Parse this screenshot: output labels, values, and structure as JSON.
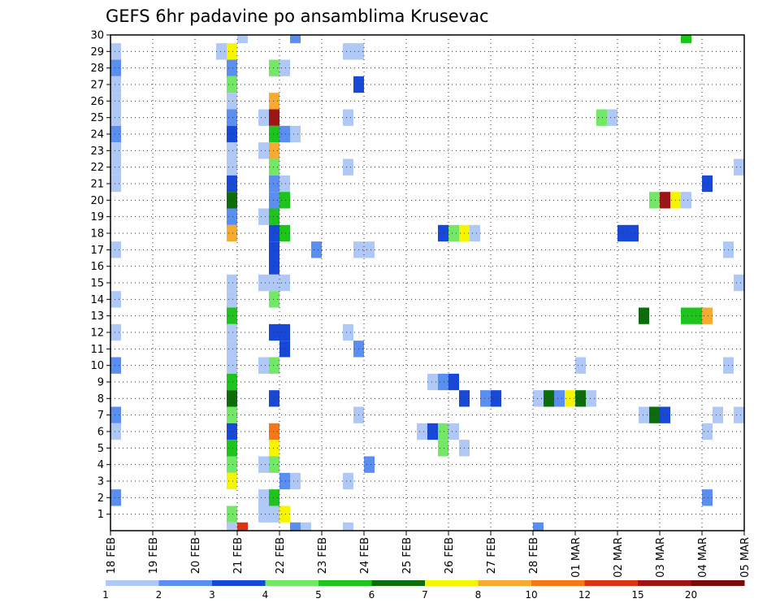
{
  "chart_data": {
    "type": "heatmap",
    "title": "GEFS 6hr padavine po ansamblima Krusevac",
    "y_ticks": [
      "1",
      "2",
      "3",
      "4",
      "5",
      "6",
      "7",
      "8",
      "9",
      "10",
      "11",
      "12",
      "13",
      "14",
      "15",
      "16",
      "17",
      "18",
      "19",
      "20",
      "21",
      "22",
      "23",
      "24",
      "25",
      "26",
      "27",
      "28",
      "29",
      "30"
    ],
    "x_ticks": [
      "18 FEB",
      "19 FEB",
      "20 FEB",
      "21 FEB",
      "22 FEB",
      "23 FEB",
      "24 FEB",
      "25 FEB",
      "26 FEB",
      "27 FEB",
      "28 FEB",
      "01 MAR",
      "02 MAR",
      "03 MAR",
      "04 MAR",
      "05 MAR"
    ],
    "xlim": [
      0,
      15
    ],
    "ylim": [
      0,
      30
    ],
    "grid": true,
    "step_days": 0.25,
    "colorbar": {
      "labels": [
        "1",
        "2",
        "3",
        "4",
        "5",
        "6",
        "7",
        "8",
        "10",
        "12",
        "15",
        "20"
      ],
      "colors": [
        "#b0c8f5",
        "#5a8ef0",
        "#1848d8",
        "#73e867",
        "#1cc41c",
        "#0b6e0b",
        "#f5f500",
        "#f5aa32",
        "#f57814",
        "#dc3214",
        "#a01414",
        "#780a0a"
      ]
    },
    "cells": [
      [
        0,
        0.0,
        2,
        2
      ],
      [
        0,
        0.0,
        10,
        2
      ],
      [
        0,
        0.0,
        7,
        2
      ],
      [
        0,
        0.0,
        28,
        2
      ],
      [
        0,
        0.0,
        24,
        2
      ],
      [
        0,
        0.0,
        29,
        1
      ],
      [
        0,
        0.0,
        27,
        1
      ],
      [
        0,
        0.0,
        26,
        1
      ],
      [
        0,
        0.0,
        25,
        1
      ],
      [
        0,
        0.0,
        23,
        1
      ],
      [
        0,
        0.0,
        22,
        1
      ],
      [
        0,
        0.0,
        21,
        1
      ],
      [
        0,
        0.0,
        17,
        1
      ],
      [
        0,
        0.0,
        14,
        1
      ],
      [
        0,
        0.0,
        12,
        1
      ],
      [
        0,
        0.0,
        6,
        1
      ],
      [
        2,
        0.5,
        29,
        1
      ],
      [
        2,
        0.75,
        29,
        7
      ],
      [
        2,
        0.75,
        28,
        2
      ],
      [
        2,
        0.75,
        27,
        4
      ],
      [
        2,
        0.75,
        26,
        1
      ],
      [
        2,
        0.75,
        25,
        2
      ],
      [
        2,
        0.75,
        24,
        3
      ],
      [
        2,
        0.75,
        23,
        1
      ],
      [
        2,
        0.75,
        22,
        1
      ],
      [
        2,
        0.75,
        21,
        3
      ],
      [
        2,
        0.75,
        20,
        6
      ],
      [
        2,
        0.75,
        19,
        2
      ],
      [
        2,
        0.75,
        18,
        8
      ],
      [
        2,
        0.75,
        15,
        1
      ],
      [
        2,
        0.75,
        14,
        1
      ],
      [
        2,
        0.75,
        13,
        5
      ],
      [
        2,
        0.75,
        12,
        1
      ],
      [
        2,
        0.75,
        11,
        1
      ],
      [
        2,
        0.75,
        10,
        1
      ],
      [
        2,
        0.75,
        9,
        5
      ],
      [
        2,
        0.75,
        8,
        6
      ],
      [
        2,
        0.75,
        7,
        4
      ],
      [
        2,
        0.75,
        6,
        3
      ],
      [
        2,
        0.75,
        5,
        5
      ],
      [
        2,
        0.75,
        4,
        4
      ],
      [
        2,
        0.75,
        3,
        7
      ],
      [
        2,
        0.75,
        1,
        4
      ],
      [
        2,
        0.75,
        0,
        1
      ],
      [
        3,
        0.0,
        30,
        1
      ],
      [
        3,
        0.0,
        0,
        10
      ],
      [
        3,
        0.5,
        25,
        1
      ],
      [
        3,
        0.5,
        23,
        1
      ],
      [
        3,
        0.5,
        19,
        1
      ],
      [
        3,
        0.5,
        15,
        1
      ],
      [
        3,
        0.5,
        10,
        1
      ],
      [
        3,
        0.5,
        4,
        1
      ],
      [
        3,
        0.5,
        2,
        1
      ],
      [
        3,
        0.5,
        1,
        1
      ],
      [
        3,
        0.75,
        28,
        4
      ],
      [
        3,
        0.75,
        26,
        8
      ],
      [
        3,
        0.75,
        25,
        11
      ],
      [
        3,
        0.75,
        24,
        5
      ],
      [
        3,
        0.75,
        23,
        8
      ],
      [
        3,
        0.75,
        22,
        4
      ],
      [
        3,
        0.75,
        21,
        2
      ],
      [
        3,
        0.75,
        20,
        2
      ],
      [
        3,
        0.75,
        19,
        5
      ],
      [
        3,
        0.75,
        18,
        3
      ],
      [
        3,
        0.75,
        17,
        3
      ],
      [
        3,
        0.75,
        16,
        3
      ],
      [
        3,
        0.75,
        15,
        1
      ],
      [
        3,
        0.75,
        14,
        4
      ],
      [
        3,
        0.75,
        12,
        3
      ],
      [
        3,
        0.75,
        10,
        4
      ],
      [
        3,
        0.75,
        8,
        3
      ],
      [
        3,
        0.75,
        6,
        9
      ],
      [
        3,
        0.75,
        5,
        7
      ],
      [
        3,
        0.75,
        4,
        4
      ],
      [
        3,
        0.75,
        2,
        5
      ],
      [
        3,
        0.75,
        1,
        1
      ],
      [
        4,
        0.0,
        28,
        1
      ],
      [
        4,
        0.0,
        24,
        2
      ],
      [
        4,
        0.0,
        21,
        1
      ],
      [
        4,
        0.0,
        20,
        5
      ],
      [
        4,
        0.0,
        18,
        5
      ],
      [
        4,
        0.0,
        15,
        1
      ],
      [
        4,
        0.0,
        12,
        3
      ],
      [
        4,
        0.0,
        11,
        3
      ],
      [
        4,
        0.0,
        3,
        2
      ],
      [
        4,
        0.0,
        1,
        7
      ],
      [
        4,
        0.25,
        30,
        2
      ],
      [
        4,
        0.25,
        24,
        1
      ],
      [
        4,
        0.25,
        3,
        1
      ],
      [
        4,
        0.25,
        0,
        2
      ],
      [
        4,
        0.5,
        0,
        1
      ],
      [
        4,
        0.75,
        17,
        2
      ],
      [
        5,
        0.5,
        29,
        1
      ],
      [
        5,
        0.5,
        25,
        1
      ],
      [
        5,
        0.5,
        22,
        1
      ],
      [
        5,
        0.5,
        12,
        1
      ],
      [
        5,
        0.5,
        3,
        1
      ],
      [
        5,
        0.5,
        0,
        1
      ],
      [
        5,
        0.75,
        29,
        1
      ],
      [
        5,
        0.75,
        27,
        3
      ],
      [
        5,
        0.75,
        17,
        1
      ],
      [
        5,
        0.75,
        11,
        2
      ],
      [
        5,
        0.75,
        7,
        1
      ],
      [
        6,
        0.0,
        17,
        1
      ],
      [
        6,
        0.0,
        4,
        2
      ],
      [
        7,
        0.25,
        6,
        1
      ],
      [
        7,
        0.5,
        9,
        1
      ],
      [
        7,
        0.5,
        6,
        3
      ],
      [
        7,
        0.75,
        18,
        3
      ],
      [
        7,
        0.75,
        9,
        2
      ],
      [
        7,
        0.75,
        6,
        4
      ],
      [
        7,
        0.75,
        5,
        4
      ],
      [
        8,
        0.0,
        18,
        4
      ],
      [
        8,
        0.0,
        9,
        3
      ],
      [
        8,
        0.0,
        6,
        1
      ],
      [
        8,
        0.25,
        18,
        7
      ],
      [
        8,
        0.25,
        8,
        3
      ],
      [
        8,
        0.25,
        5,
        1
      ],
      [
        8,
        0.5,
        18,
        1
      ],
      [
        8,
        0.75,
        8,
        2
      ],
      [
        9,
        0.0,
        8,
        3
      ],
      [
        10,
        0.0,
        8,
        1
      ],
      [
        10,
        0.0,
        0,
        2
      ],
      [
        10,
        0.25,
        8,
        6
      ],
      [
        10,
        0.5,
        8,
        2
      ],
      [
        10,
        0.75,
        8,
        7
      ],
      [
        11,
        0.0,
        10,
        1
      ],
      [
        11,
        0.0,
        8,
        6
      ],
      [
        11,
        0.25,
        8,
        1
      ],
      [
        11,
        0.5,
        25,
        4
      ],
      [
        11,
        0.75,
        25,
        1
      ],
      [
        12,
        0.0,
        18,
        3
      ],
      [
        12,
        0.25,
        18,
        3
      ],
      [
        12,
        0.5,
        13,
        6
      ],
      [
        12,
        0.5,
        7,
        1
      ],
      [
        12,
        0.75,
        20,
        4
      ],
      [
        12,
        0.75,
        7,
        6
      ],
      [
        13,
        0.0,
        20,
        11
      ],
      [
        13,
        0.0,
        7,
        3
      ],
      [
        13,
        0.25,
        20,
        7
      ],
      [
        13,
        0.5,
        20,
        1
      ],
      [
        13,
        0.5,
        30,
        5
      ],
      [
        13,
        0.5,
        13,
        5
      ],
      [
        13,
        0.75,
        13,
        5
      ],
      [
        14,
        0.0,
        21,
        3
      ],
      [
        14,
        0.0,
        13,
        8
      ],
      [
        14,
        0.0,
        6,
        1
      ],
      [
        14,
        0.0,
        2,
        2
      ],
      [
        14,
        0.25,
        7,
        1
      ],
      [
        14,
        0.5,
        17,
        1
      ],
      [
        14,
        0.5,
        10,
        1
      ],
      [
        14,
        0.75,
        22,
        1
      ],
      [
        14,
        0.75,
        15,
        1
      ],
      [
        14,
        0.75,
        7,
        1
      ]
    ]
  }
}
